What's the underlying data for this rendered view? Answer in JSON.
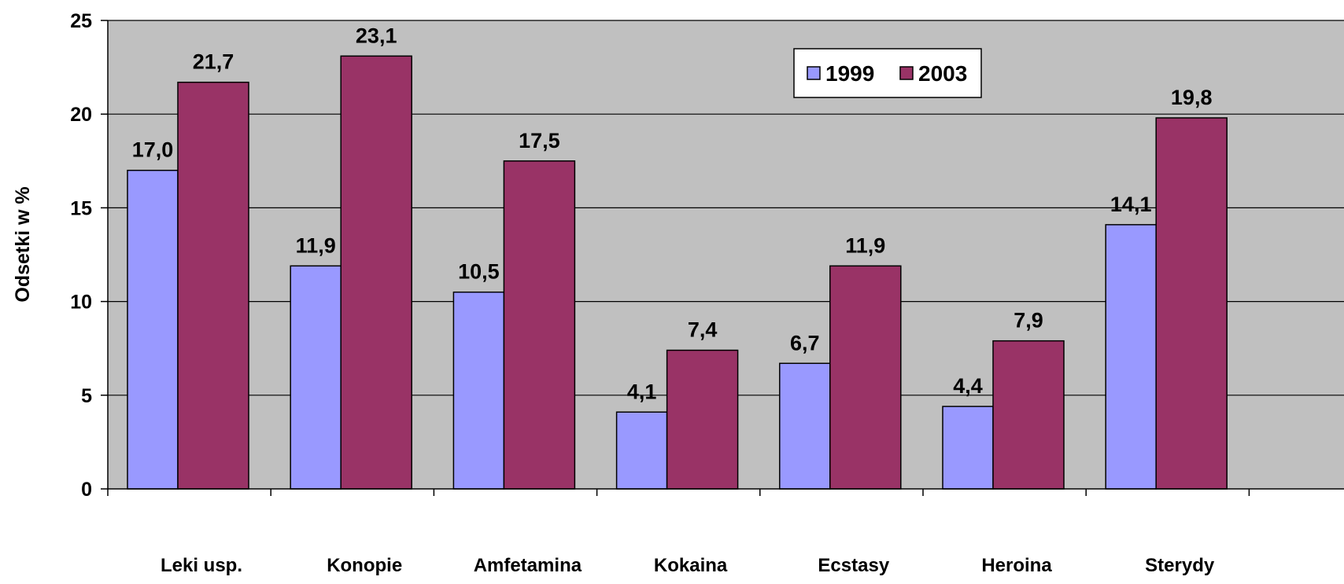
{
  "chart_data": {
    "type": "bar",
    "title": "",
    "xlabel": "",
    "ylabel": "Odsetki w %",
    "ylim": [
      0,
      25
    ],
    "yticks": [
      0,
      5,
      10,
      15,
      20,
      25
    ],
    "grid": true,
    "legend_position": "top-right",
    "categories": [
      "Leki usp.",
      "Konopie",
      "Amfetamina",
      "Kokaina",
      "Ecstasy",
      "Heroina",
      "Sterydy"
    ],
    "series": [
      {
        "name": "1999",
        "color": "#9999ff",
        "values": [
          17.0,
          11.9,
          10.5,
          4.1,
          6.7,
          4.4,
          14.1
        ],
        "labels": [
          "17,0",
          "11,9",
          "10,5",
          "4,1",
          "6,7",
          "4,4",
          "14,1"
        ]
      },
      {
        "name": "2003",
        "color": "#993366",
        "values": [
          21.7,
          23.1,
          17.5,
          7.4,
          11.9,
          7.9,
          19.8
        ],
        "labels": [
          "21,7",
          "23,1",
          "17,5",
          "7,4",
          "11,9",
          "7,9",
          "19,8"
        ]
      }
    ],
    "plot_background": "#c0c0c0"
  }
}
